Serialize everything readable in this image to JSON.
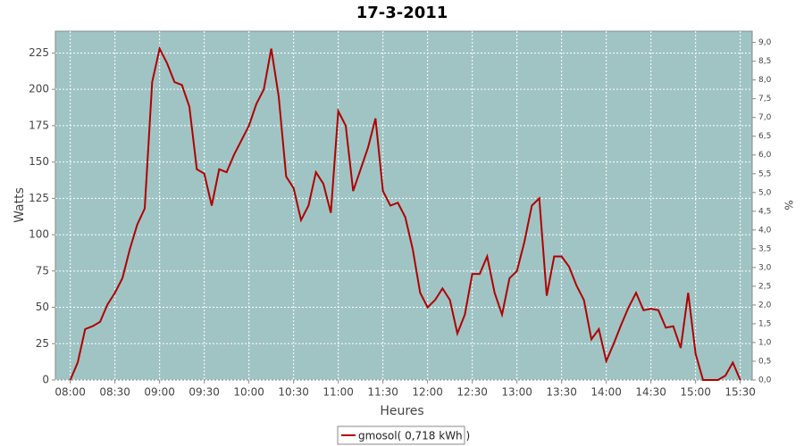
{
  "chart_data": {
    "type": "line",
    "title": "17-3-2011",
    "xlabel": "Heures",
    "ylabel": "Watts",
    "y2label": "%",
    "x": [
      "08:00",
      "08:05",
      "08:10",
      "08:15",
      "08:20",
      "08:25",
      "08:30",
      "08:35",
      "08:40",
      "08:45",
      "08:50",
      "08:55",
      "09:00",
      "09:05",
      "09:10",
      "09:15",
      "09:20",
      "09:25",
      "09:30",
      "09:35",
      "09:40",
      "09:45",
      "09:50",
      "09:55",
      "10:00",
      "10:05",
      "10:10",
      "10:15",
      "10:20",
      "10:25",
      "10:30",
      "10:35",
      "10:40",
      "10:45",
      "10:50",
      "10:55",
      "11:00",
      "11:05",
      "11:10",
      "11:15",
      "11:20",
      "11:25",
      "11:30",
      "11:35",
      "11:40",
      "11:45",
      "11:50",
      "11:55",
      "12:00",
      "12:05",
      "12:10",
      "12:15",
      "12:20",
      "12:25",
      "12:30",
      "12:35",
      "12:40",
      "12:45",
      "12:50",
      "12:55",
      "13:00",
      "13:05",
      "13:10",
      "13:15",
      "13:20",
      "13:25",
      "13:30",
      "13:35",
      "13:40",
      "13:45",
      "13:50",
      "13:55",
      "14:00",
      "14:05",
      "14:10",
      "14:15",
      "14:20",
      "14:25",
      "14:30",
      "14:35",
      "14:40",
      "14:45",
      "14:50",
      "14:55",
      "15:00",
      "15:05",
      "15:10",
      "15:15",
      "15:20",
      "15:25",
      "15:30"
    ],
    "series": [
      {
        "name": "gmosol( 0,718 kWh )",
        "color": "#b00000",
        "values": [
          0,
          12,
          35,
          37,
          40,
          52,
          60,
          70,
          90,
          107,
          118,
          205,
          228,
          218,
          205,
          203,
          188,
          145,
          142,
          120,
          145,
          143,
          155,
          165,
          175,
          190,
          200,
          228,
          195,
          140,
          132,
          110,
          120,
          143,
          135,
          115,
          185,
          175,
          130,
          145,
          160,
          180,
          130,
          120,
          122,
          112,
          90,
          60,
          50,
          55,
          63,
          55,
          32,
          45,
          73,
          73,
          85,
          60,
          45,
          70,
          75,
          95,
          120,
          125,
          58,
          85,
          85,
          78,
          65,
          55,
          28,
          35,
          13,
          25,
          38,
          50,
          60,
          48,
          49,
          48,
          36,
          37,
          22,
          60,
          18,
          0,
          0,
          0,
          3,
          12,
          0
        ]
      }
    ],
    "xlim": [
      "07:50",
      "15:38"
    ],
    "xticks": [
      "08:00",
      "08:30",
      "09:00",
      "09:30",
      "10:00",
      "10:30",
      "11:00",
      "11:30",
      "12:00",
      "12:30",
      "13:00",
      "13:30",
      "14:00",
      "14:30",
      "15:00",
      "15:30"
    ],
    "ylim": [
      0,
      240
    ],
    "yticks": [
      0,
      25,
      50,
      75,
      100,
      125,
      150,
      175,
      200,
      225
    ],
    "y2lim": [
      0,
      9.3
    ],
    "y2ticks": [
      {
        "value": 0,
        "label": "0,0"
      },
      {
        "value": 0.5,
        "label": "0,5"
      },
      {
        "value": 1,
        "label": "1,0"
      },
      {
        "value": 1.5,
        "label": "1,5"
      },
      {
        "value": 2,
        "label": "2,0"
      },
      {
        "value": 2.5,
        "label": "2,5"
      },
      {
        "value": 3,
        "label": "3,0"
      },
      {
        "value": 3.5,
        "label": "3,5"
      },
      {
        "value": 4,
        "label": "4,0"
      },
      {
        "value": 4.5,
        "label": "4,5"
      },
      {
        "value": 5,
        "label": "5,0"
      },
      {
        "value": 5.5,
        "label": "5,5"
      },
      {
        "value": 6,
        "label": "6,0"
      },
      {
        "value": 6.5,
        "label": "6,5"
      },
      {
        "value": 7,
        "label": "7,0"
      },
      {
        "value": 7.5,
        "label": "7,5"
      },
      {
        "value": 8,
        "label": "8,0"
      },
      {
        "value": 8.5,
        "label": "8,5"
      },
      {
        "value": 9,
        "label": "9,0"
      }
    ],
    "grid": true,
    "legend": "bottom"
  }
}
